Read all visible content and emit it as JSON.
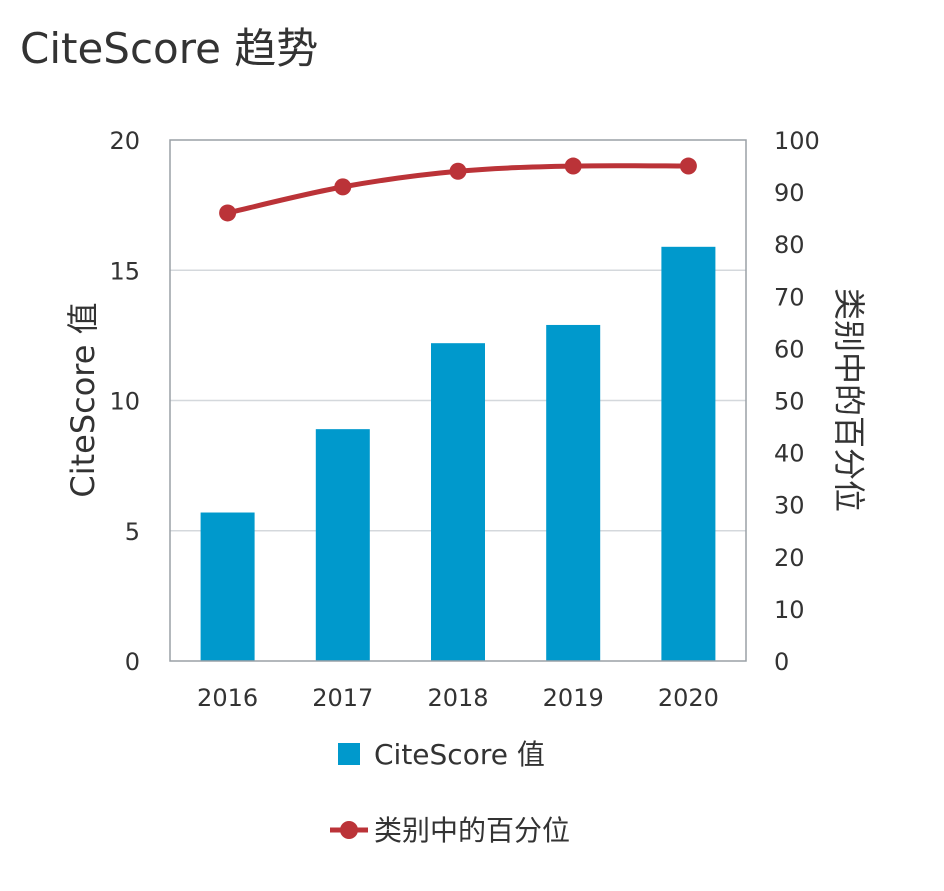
{
  "title": "CiteScore 趋势",
  "chart_data": {
    "type": "bar+line",
    "categories": [
      "2016",
      "2017",
      "2018",
      "2019",
      "2020"
    ],
    "series": [
      {
        "name": "CiteScore 值",
        "type": "bar",
        "axis": "left",
        "color": "#0099cc",
        "values": [
          5.7,
          8.9,
          12.2,
          12.9,
          15.9
        ]
      },
      {
        "name": "类别中的百分位",
        "type": "line",
        "axis": "right",
        "color": "#bb3338",
        "values": [
          86,
          91,
          94,
          95,
          95
        ]
      }
    ],
    "ylabel": "CiteScore 值",
    "ylim": [
      0,
      20
    ],
    "yticks": [
      0,
      5,
      10,
      15,
      20
    ],
    "y2label": "类别中的百分位",
    "y2lim": [
      0,
      100
    ],
    "y2ticks": [
      0,
      10,
      20,
      30,
      40,
      50,
      60,
      70,
      80,
      90,
      100
    ],
    "grid": true,
    "legend_position": "bottom"
  }
}
